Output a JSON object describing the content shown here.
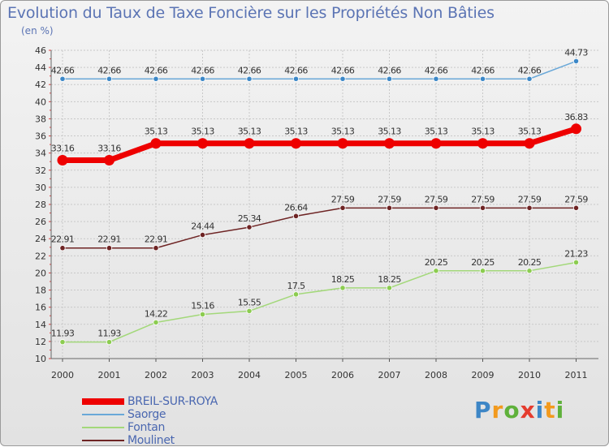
{
  "header": {
    "title": "Evolution du Taux de Taxe Foncière sur les Propriétés Non Bâties",
    "unit": "(en %)"
  },
  "chart_data": {
    "type": "line",
    "title": "Evolution du Taux de Taxe Foncière sur les Propriétés Non Bâties",
    "ylabel": "(en %)",
    "xlabel": "",
    "categories": [
      "2000",
      "2001",
      "2002",
      "2003",
      "2004",
      "2005",
      "2006",
      "2007",
      "2008",
      "2009",
      "2010",
      "2011"
    ],
    "ylim": [
      10,
      46
    ],
    "yticks": [
      "10",
      "12",
      "14",
      "16",
      "18",
      "20",
      "22",
      "24",
      "26",
      "28",
      "30",
      "32",
      "34",
      "36",
      "38",
      "40",
      "42",
      "44",
      "46"
    ],
    "grid": true,
    "legend_position": "bottom-left",
    "series": [
      {
        "name": "Saorge",
        "color": "#6aa8d8",
        "marker_color": "#3c88c8",
        "values": [
          42.66,
          42.66,
          42.66,
          42.66,
          42.66,
          42.66,
          42.66,
          42.66,
          42.66,
          42.66,
          42.66,
          44.73
        ],
        "labels": [
          "42.66",
          "42.66",
          "42.66",
          "42.66",
          "42.66",
          "42.66",
          "42.66",
          "42.66",
          "42.66",
          "42.66",
          "42.66",
          "44.73"
        ]
      },
      {
        "name": "BREIL-SUR-ROYA",
        "color": "#ee0000",
        "marker_color": "#ee0000",
        "values": [
          33.16,
          33.16,
          35.13,
          35.13,
          35.13,
          35.13,
          35.13,
          35.13,
          35.13,
          35.13,
          35.13,
          36.83
        ],
        "labels": [
          "33.16",
          "33.16",
          "35.13",
          "35.13",
          "35.13",
          "35.13",
          "35.13",
          "35.13",
          "35.13",
          "35.13",
          "35.13",
          "36.83"
        ]
      },
      {
        "name": "Moulinet",
        "color": "#6e2424",
        "marker_color": "#6e2424",
        "values": [
          22.91,
          22.91,
          22.91,
          24.44,
          25.34,
          26.64,
          27.59,
          27.59,
          27.59,
          27.59,
          27.59,
          27.59
        ],
        "labels": [
          "22.91",
          "22.91",
          "22.91",
          "24.44",
          "25.34",
          "26.64",
          "27.59",
          "27.59",
          "27.59",
          "27.59",
          "27.59",
          "27.59"
        ]
      },
      {
        "name": "Fontan",
        "color": "#a3d87a",
        "marker_color": "#8ccc50",
        "values": [
          11.93,
          11.93,
          14.22,
          15.16,
          15.55,
          17.5,
          18.25,
          18.25,
          20.25,
          20.25,
          20.25,
          21.23
        ],
        "labels": [
          "11.93",
          "11.93",
          "14.22",
          "15.16",
          "15.55",
          "17.5",
          "18.25",
          "18.25",
          "20.25",
          "20.25",
          "20.25",
          "21.23"
        ]
      }
    ]
  },
  "legend": {
    "items": [
      {
        "label": "BREIL-SUR-ROYA",
        "color": "#ee0000",
        "thickness": "thick"
      },
      {
        "label": "Saorge",
        "color": "#6aa8d8",
        "thickness": "thin"
      },
      {
        "label": "Fontan",
        "color": "#a3d87a",
        "thickness": "thin"
      },
      {
        "label": "Moulinet",
        "color": "#6e2424",
        "thickness": "thin"
      }
    ]
  },
  "logo": {
    "text": "Proxiti",
    "letters": [
      {
        "ch": "P",
        "color": "#3d86c6"
      },
      {
        "ch": "r",
        "color": "#f29a1e"
      },
      {
        "ch": "o",
        "color": "#5fb13b"
      },
      {
        "ch": "x",
        "color": "#e53c2e"
      },
      {
        "ch": "i",
        "color": "#3d86c6"
      },
      {
        "ch": "t",
        "color": "#f29a1e"
      },
      {
        "ch": "i",
        "color": "#5fb13b"
      }
    ]
  }
}
